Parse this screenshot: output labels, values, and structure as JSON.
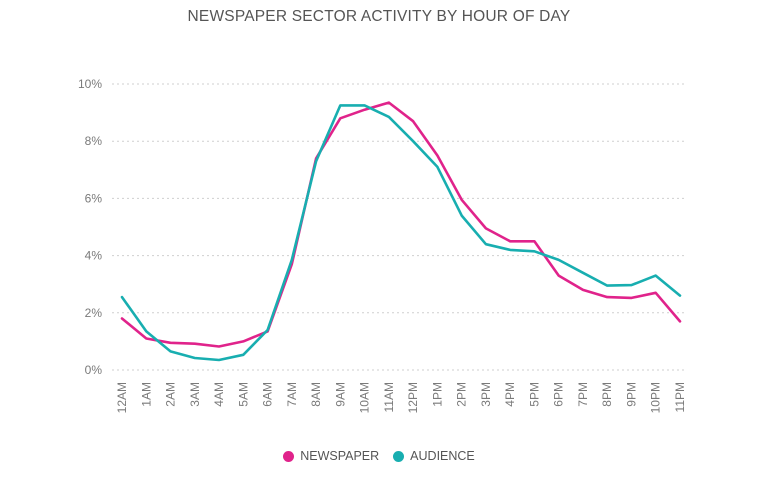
{
  "chart_data": {
    "type": "line",
    "title": "NEWSPAPER SECTOR ACTIVITY BY HOUR OF DAY",
    "xlabel": "",
    "ylabel": "",
    "categories": [
      "12AM",
      "1AM",
      "2AM",
      "3AM",
      "4AM",
      "5AM",
      "6AM",
      "7AM",
      "8AM",
      "9AM",
      "10AM",
      "11AM",
      "12PM",
      "1PM",
      "2PM",
      "3PM",
      "4PM",
      "5PM",
      "6PM",
      "7PM",
      "8PM",
      "9PM",
      "10PM",
      "11PM"
    ],
    "y_ticks": [
      "0%",
      "2%",
      "4%",
      "6%",
      "8%",
      "10%"
    ],
    "ylim": [
      0,
      10
    ],
    "grid": "horizontal dotted",
    "legend_position": "bottom",
    "series": [
      {
        "name": "NEWSPAPER",
        "color": "#e0238b",
        "values": [
          1.8,
          1.1,
          0.95,
          0.92,
          0.82,
          1.0,
          1.35,
          3.7,
          7.4,
          8.8,
          9.1,
          9.35,
          8.7,
          7.5,
          5.95,
          4.95,
          4.5,
          4.5,
          3.3,
          2.8,
          2.55,
          2.52,
          2.7,
          1.7
        ]
      },
      {
        "name": "AUDIENCE",
        "color": "#18aeb0",
        "values": [
          2.55,
          1.35,
          0.65,
          0.42,
          0.35,
          0.53,
          1.4,
          3.85,
          7.3,
          9.25,
          9.25,
          8.85,
          8.0,
          7.1,
          5.4,
          4.4,
          4.2,
          4.15,
          3.85,
          3.4,
          2.95,
          2.97,
          3.3,
          2.6
        ]
      }
    ]
  }
}
